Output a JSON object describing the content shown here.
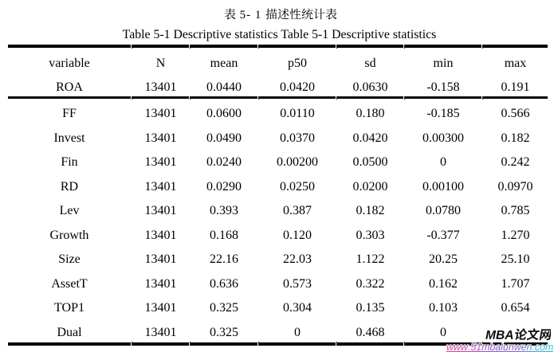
{
  "page": {
    "background": "#ffffff",
    "text_color": "#000000"
  },
  "titles": {
    "chinese": "表 5- 1 描述性统计表",
    "english": "Table 5-1 Descriptive statistics Table 5-1 Descriptive statistics"
  },
  "table": {
    "columns": [
      "variable",
      "N",
      "mean",
      "p50",
      "sd",
      "min",
      "max"
    ],
    "rows": [
      [
        "ROA",
        "13401",
        "0.0440",
        "0.0420",
        "0.0630",
        "-0.158",
        "0.191"
      ],
      [
        "FF",
        "13401",
        "0.0600",
        "0.0110",
        "0.180",
        "-0.185",
        "0.566"
      ],
      [
        "Invest",
        "13401",
        "0.0490",
        "0.0370",
        "0.0420",
        "0.00300",
        "0.182"
      ],
      [
        "Fin",
        "13401",
        "0.0240",
        "0.00200",
        "0.0500",
        "0",
        "0.242"
      ],
      [
        "RD",
        "13401",
        "0.0290",
        "0.0250",
        "0.0200",
        "0.00100",
        "0.0970"
      ],
      [
        "Lev",
        "13401",
        "0.393",
        "0.387",
        "0.182",
        "0.0780",
        "0.785"
      ],
      [
        "Growth",
        "13401",
        "0.168",
        "0.120",
        "0.303",
        "-0.377",
        "1.270"
      ],
      [
        "Size",
        "13401",
        "22.16",
        "22.03",
        "1.122",
        "20.25",
        "25.10"
      ],
      [
        "AssetT",
        "13401",
        "0.636",
        "0.573",
        "0.322",
        "0.162",
        "1.707"
      ],
      [
        "TOP1",
        "13401",
        "0.325",
        "0.304",
        "0.135",
        "0.103",
        "0.654"
      ],
      [
        "Dual",
        "13401",
        "0.325",
        "0",
        "0.468",
        "0",
        ""
      ]
    ]
  },
  "chart_data": {
    "type": "table",
    "title": "表 5- 1 描述性统计表 / Table 5-1 Descriptive statistics",
    "columns": [
      "variable",
      "N",
      "mean",
      "p50",
      "sd",
      "min",
      "max"
    ]
  },
  "watermark": {
    "brand": "MBA论文网",
    "url": "www.51mbalunwen.com",
    "brand_color": "#0d0d0d",
    "url_gradient": [
      "#e7399f",
      "#b24ab4",
      "#8759c6",
      "#7d6ccb",
      "#43a5d5",
      "#2abdd9"
    ]
  }
}
